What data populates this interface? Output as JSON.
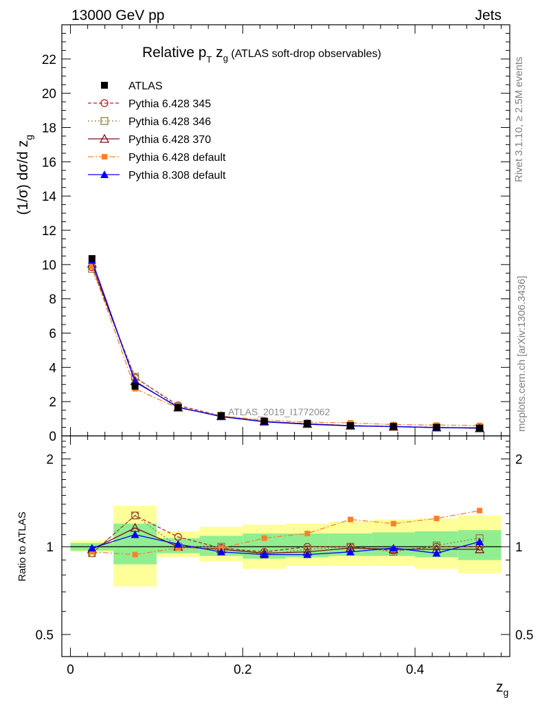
{
  "header": {
    "left": "13000 GeV pp",
    "right": "Jets"
  },
  "side_labels": {
    "rivet": "Rivet 3.1.10, ≥ 2.5M events",
    "mcplots": "mcplots.cern.ch [arXiv:1306.3436]"
  },
  "colors": {
    "atlas": "#000000",
    "py6_345": "#b22222",
    "py6_346": "#8b7d3a",
    "py6_370": "#7a0f17",
    "py6_default": "#ff7f2a",
    "py8_default": "#0000ff",
    "band_stat": "#90ee90",
    "band_total": "#ffff99"
  },
  "chart_data": [
    {
      "type": "line",
      "title_parts": {
        "main": "Relative p",
        "sub": "T",
        "mid": " z",
        "sub2": "g",
        "rest": " (ATLAS soft-drop observables)"
      },
      "ylabel_parts": {
        "main": "(1/σ) dσ/d z",
        "sub": "g"
      },
      "watermark": "ATLAS_2019_I1772062",
      "ylim": [
        0,
        24
      ],
      "yticks": [
        0,
        2,
        4,
        6,
        8,
        10,
        12,
        14,
        16,
        18,
        20,
        22
      ],
      "xlim": [
        -0.01,
        0.51
      ],
      "x": [
        0.025,
        0.075,
        0.125,
        0.175,
        0.225,
        0.275,
        0.325,
        0.375,
        0.425,
        0.475
      ],
      "legend_position": "top-left",
      "series": [
        {
          "name": "ATLAS",
          "key": "atlas",
          "marker": "square-filled",
          "line": "none",
          "values": [
            10.35,
            2.9,
            1.65,
            1.18,
            0.86,
            0.72,
            0.6,
            0.55,
            0.5,
            0.45
          ]
        },
        {
          "name": "Pythia 6.428 345",
          "key": "py6_345",
          "marker": "circle-open",
          "line": "dashed",
          "values": [
            9.85,
            3.4,
            1.78,
            1.16,
            0.83,
            0.71,
            0.6,
            0.54,
            0.5,
            0.45
          ]
        },
        {
          "name": "Pythia 6.428 346",
          "key": "py6_346",
          "marker": "square-open",
          "line": "dotted",
          "values": [
            9.75,
            3.45,
            1.68,
            1.17,
            0.83,
            0.7,
            0.6,
            0.53,
            0.5,
            0.47
          ]
        },
        {
          "name": "Pythia 6.428 370",
          "key": "py6_370",
          "marker": "triangle-open",
          "line": "solid",
          "values": [
            10.05,
            3.2,
            1.65,
            1.15,
            0.84,
            0.7,
            0.6,
            0.54,
            0.49,
            0.44
          ]
        },
        {
          "name": "Pythia 6.428 default",
          "key": "py6_default",
          "marker": "square-filled-small",
          "line": "dashdot",
          "values": [
            9.9,
            2.75,
            1.62,
            1.16,
            0.93,
            0.8,
            0.76,
            0.66,
            0.63,
            0.61
          ]
        },
        {
          "name": "Pythia 8.308 default",
          "key": "py8_default",
          "marker": "triangle-filled",
          "line": "solid",
          "values": [
            10.25,
            3.15,
            1.68,
            1.12,
            0.82,
            0.68,
            0.58,
            0.55,
            0.48,
            0.47
          ]
        }
      ]
    },
    {
      "type": "line",
      "ylabel": "Ratio to ATLAS",
      "xlabel_parts": {
        "main": "z",
        "sub": "g"
      },
      "yscale": "log",
      "ylim": [
        0.42,
        2.4
      ],
      "yticks": [
        0.5,
        1,
        2
      ],
      "ytick_labels": [
        "0.5",
        "1",
        "2"
      ],
      "xticks": [
        0,
        0.2,
        0.4
      ],
      "xtick_labels": [
        "0",
        "0.2",
        "0.4"
      ],
      "xlim": [
        -0.01,
        0.51
      ],
      "x": [
        0.025,
        0.075,
        0.125,
        0.175,
        0.225,
        0.275,
        0.325,
        0.375,
        0.425,
        0.475
      ],
      "bin_edges": [
        0.0,
        0.05,
        0.1,
        0.15,
        0.2,
        0.25,
        0.3,
        0.35,
        0.4,
        0.45,
        0.5
      ],
      "band_total": {
        "lo": [
          0.96,
          0.73,
          0.92,
          0.89,
          0.84,
          0.86,
          0.86,
          0.86,
          0.84,
          0.81
        ],
        "hi": [
          1.05,
          1.38,
          1.13,
          1.17,
          1.19,
          1.2,
          1.22,
          1.24,
          1.25,
          1.28
        ]
      },
      "band_stat": {
        "lo": [
          0.97,
          0.87,
          0.95,
          0.93,
          0.91,
          0.92,
          0.93,
          0.93,
          0.92,
          0.9
        ],
        "hi": [
          1.03,
          1.2,
          1.07,
          1.09,
          1.11,
          1.11,
          1.11,
          1.12,
          1.13,
          1.14
        ]
      },
      "series": [
        {
          "name": "Pythia 6.428 345",
          "key": "py6_345",
          "marker": "circle-open",
          "line": "dashed",
          "values": [
            0.95,
            1.28,
            1.08,
            0.99,
            0.96,
            1.0,
            1.0,
            0.97,
            1.0,
            1.0
          ]
        },
        {
          "name": "Pythia 6.428 346",
          "key": "py6_346",
          "marker": "square-open",
          "line": "dotted",
          "values": [
            0.95,
            1.28,
            1.0,
            1.0,
            0.94,
            0.98,
            1.0,
            0.96,
            1.01,
            1.07
          ]
        },
        {
          "name": "Pythia 6.428 370",
          "key": "py6_370",
          "marker": "triangle-open",
          "line": "solid",
          "values": [
            0.98,
            1.16,
            1.0,
            0.98,
            0.95,
            0.96,
            0.99,
            0.98,
            0.98,
            0.98
          ]
        },
        {
          "name": "Pythia 6.428 default",
          "key": "py6_default",
          "marker": "square-filled-small",
          "line": "dashdot",
          "values": [
            0.96,
            0.94,
            0.99,
            0.99,
            1.07,
            1.11,
            1.24,
            1.2,
            1.25,
            1.33
          ]
        },
        {
          "name": "Pythia 8.308 default",
          "key": "py8_default",
          "marker": "triangle-filled",
          "line": "solid",
          "values": [
            0.99,
            1.1,
            1.02,
            0.96,
            0.94,
            0.94,
            0.96,
            0.99,
            0.95,
            1.04
          ]
        }
      ]
    }
  ]
}
